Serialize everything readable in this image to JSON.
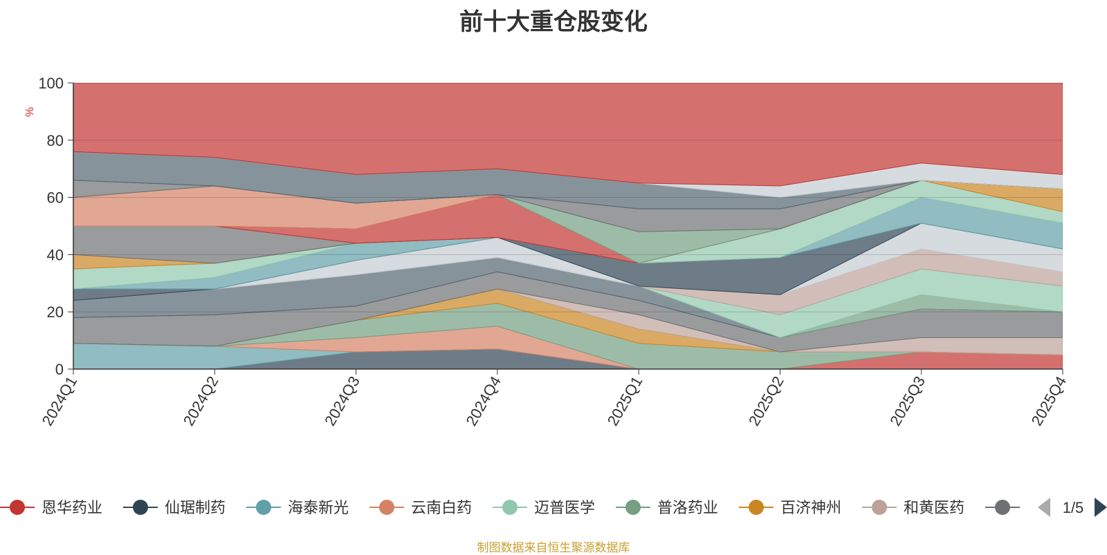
{
  "chart_data": {
    "type": "area",
    "title": "前十大重仓股变化",
    "xlabel": "",
    "ylabel": "%",
    "ylim": [
      0,
      100
    ],
    "yticks": [
      0,
      20,
      40,
      60,
      80,
      100
    ],
    "grid": true,
    "categories": [
      "2024Q1",
      "2024Q2",
      "2024Q3",
      "2024Q4",
      "2025Q1",
      "2025Q2",
      "2025Q3",
      "2025Q4"
    ],
    "series": [
      {
        "name": "恩华药业",
        "color": "#c23531"
      },
      {
        "name": "仙琚制药",
        "color": "#2f4554"
      },
      {
        "name": "海泰新光",
        "color": "#61a0a8"
      },
      {
        "name": "云南白药",
        "color": "#d48265"
      },
      {
        "name": "迈普医学",
        "color": "#91c7ae"
      },
      {
        "name": "普洛药业",
        "color": "#749f83"
      },
      {
        "name": "百济神州",
        "color": "#ca8622"
      },
      {
        "name": "和黄医药",
        "color": "#bda29a"
      },
      {
        "name": "…",
        "color": "#6e7074"
      }
    ],
    "bands": [
      {
        "color": "#2f4554",
        "lower": [
          0,
          0,
          0,
          0,
          0,
          0,
          0,
          0
        ],
        "upper": [
          0,
          0,
          6,
          7,
          0,
          0,
          0,
          0
        ]
      },
      {
        "color": "#61a0a8",
        "lower": [
          0,
          0,
          6,
          7,
          0,
          0,
          0,
          0
        ],
        "upper": [
          9,
          8,
          6,
          7,
          0,
          0,
          0,
          0
        ]
      },
      {
        "color": "#c23531",
        "lower": [
          0,
          0,
          0,
          0,
          0,
          0,
          0,
          0
        ],
        "upper": [
          0,
          0,
          0,
          0,
          0,
          0,
          6,
          5
        ]
      },
      {
        "color": "#d48265",
        "lower": [
          9,
          8,
          6,
          7,
          0,
          0,
          6,
          5
        ],
        "upper": [
          9,
          8,
          11,
          15,
          0,
          0,
          6,
          5
        ]
      },
      {
        "color": "#749f83",
        "lower": [
          9,
          8,
          11,
          15,
          0,
          0,
          6,
          5
        ],
        "upper": [
          9,
          8,
          17,
          23,
          9,
          6,
          6,
          5
        ]
      },
      {
        "color": "#91c7ae",
        "lower": [
          9,
          8,
          17,
          23,
          9,
          6,
          6,
          5
        ],
        "upper": [
          9,
          8,
          17,
          23,
          9,
          6,
          6,
          5
        ]
      },
      {
        "color": "#ca8622",
        "lower": [
          9,
          8,
          17,
          23,
          9,
          6,
          6,
          5
        ],
        "upper": [
          9,
          8,
          17,
          28,
          14,
          6,
          6,
          5
        ]
      },
      {
        "color": "#bda29a",
        "lower": [
          9,
          8,
          17,
          28,
          14,
          6,
          6,
          5
        ],
        "upper": [
          9,
          8,
          17,
          28,
          19,
          6,
          11,
          11
        ]
      },
      {
        "color": "#6e7074",
        "lower": [
          9,
          8,
          17,
          28,
          19,
          6,
          11,
          11
        ],
        "upper": [
          18,
          19,
          22,
          34,
          24,
          11,
          21,
          20
        ]
      },
      {
        "color": "#546570",
        "lower": [
          18,
          19,
          22,
          34,
          24,
          11,
          21,
          20
        ],
        "upper": [
          24,
          28,
          33,
          39,
          29,
          11,
          21,
          20
        ]
      },
      {
        "color": "#749f83",
        "lower": [
          24,
          28,
          33,
          39,
          29,
          11,
          21,
          20
        ],
        "upper": [
          24,
          28,
          33,
          39,
          29,
          11,
          26,
          20
        ]
      },
      {
        "color": "#91c7ae",
        "lower": [
          24,
          28,
          33,
          39,
          29,
          11,
          26,
          20
        ],
        "upper": [
          24,
          28,
          33,
          39,
          29,
          19,
          35,
          29
        ]
      },
      {
        "color": "#bda29a",
        "lower": [
          24,
          28,
          33,
          39,
          29,
          19,
          35,
          29
        ],
        "upper": [
          24,
          28,
          33,
          39,
          29,
          26,
          42,
          34
        ]
      },
      {
        "color": "#c4ccd3",
        "lower": [
          24,
          28,
          33,
          39,
          29,
          26,
          42,
          34
        ],
        "upper": [
          24,
          28,
          38,
          46,
          29,
          26,
          51,
          42
        ]
      },
      {
        "color": "#2f4554",
        "lower": [
          24,
          28,
          38,
          46,
          29,
          26,
          51,
          42
        ],
        "upper": [
          28,
          28,
          38,
          46,
          37,
          39,
          51,
          42
        ]
      },
      {
        "color": "#61a0a8",
        "lower": [
          28,
          28,
          38,
          46,
          37,
          39,
          51,
          42
        ],
        "upper": [
          28,
          32,
          44,
          46,
          37,
          39,
          60,
          51
        ]
      },
      {
        "color": "#91c7ae",
        "lower": [
          28,
          32,
          44,
          46,
          37,
          39,
          60,
          51
        ],
        "upper": [
          35,
          37,
          44,
          46,
          37,
          49,
          66,
          55
        ]
      },
      {
        "color": "#ca8622",
        "lower": [
          35,
          37,
          44,
          46,
          37,
          49,
          66,
          55
        ],
        "upper": [
          40,
          37,
          44,
          46,
          37,
          49,
          66,
          63
        ]
      },
      {
        "color": "#6e7074",
        "lower": [
          40,
          37,
          44,
          46,
          37,
          49,
          66,
          63
        ],
        "upper": [
          50,
          50,
          44,
          46,
          37,
          49,
          66,
          63
        ]
      },
      {
        "color": "#c23531",
        "lower": [
          50,
          50,
          44,
          46,
          37,
          49,
          66,
          63
        ],
        "upper": [
          50,
          50,
          49,
          61,
          37,
          49,
          66,
          63
        ]
      },
      {
        "color": "#d48265",
        "lower": [
          50,
          50,
          49,
          61,
          37,
          49,
          66,
          63
        ],
        "upper": [
          60,
          64,
          58,
          61,
          37,
          49,
          66,
          63
        ]
      },
      {
        "color": "#749f83",
        "lower": [
          60,
          64,
          58,
          61,
          37,
          49,
          66,
          63
        ],
        "upper": [
          60,
          64,
          58,
          61,
          48,
          49,
          66,
          63
        ]
      },
      {
        "color": "#6e7074",
        "lower": [
          60,
          64,
          58,
          61,
          48,
          49,
          66,
          63
        ],
        "upper": [
          66,
          64,
          58,
          61,
          56,
          56,
          66,
          63
        ]
      },
      {
        "color": "#546570",
        "lower": [
          66,
          64,
          58,
          61,
          56,
          56,
          66,
          63
        ],
        "upper": [
          76,
          74,
          68,
          70,
          65,
          60,
          66,
          63
        ]
      },
      {
        "color": "#c4ccd3",
        "lower": [
          76,
          74,
          68,
          70,
          65,
          60,
          66,
          63
        ],
        "upper": [
          76,
          74,
          68,
          70,
          65,
          64,
          72,
          68
        ]
      },
      {
        "color": "#c23531",
        "lower": [
          76,
          74,
          68,
          70,
          65,
          64,
          72,
          68
        ],
        "upper": [
          100,
          100,
          100,
          100,
          100,
          100,
          100,
          100
        ]
      }
    ]
  },
  "legend": {
    "page_indicator": "1/5"
  },
  "footer": {
    "source_text": "制图数据来自恒生聚源数据库"
  }
}
